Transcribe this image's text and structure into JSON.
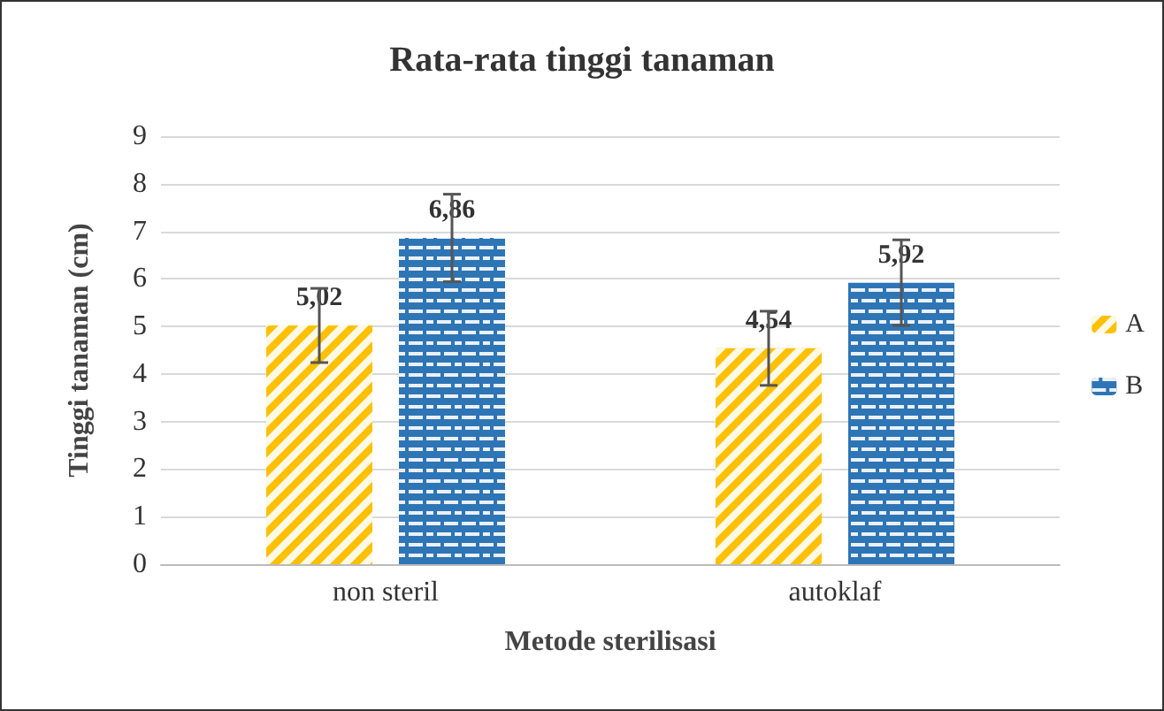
{
  "chart_data": {
    "type": "bar",
    "title": "Rata-rata tinggi tanaman",
    "xlabel": "Metode sterilisasi",
    "ylabel": "Tinggi tanaman (cm)",
    "categories": [
      "non steril",
      "autoklaf"
    ],
    "series": [
      {
        "name": "A",
        "color": "#ffc000",
        "values": [
          5.02,
          4.54
        ],
        "errors": [
          0.78,
          0.78
        ],
        "value_labels": [
          "5,02",
          "4,54"
        ]
      },
      {
        "name": "B",
        "color": "#2e75b6",
        "values": [
          6.86,
          5.92
        ],
        "errors": [
          0.92,
          0.9
        ],
        "value_labels": [
          "6,86",
          "5,92"
        ]
      }
    ],
    "ylim": [
      0,
      9
    ],
    "yticks": [
      0,
      1,
      2,
      3,
      4,
      5,
      6,
      7,
      8,
      9
    ],
    "grid": "y",
    "legend": "right"
  }
}
